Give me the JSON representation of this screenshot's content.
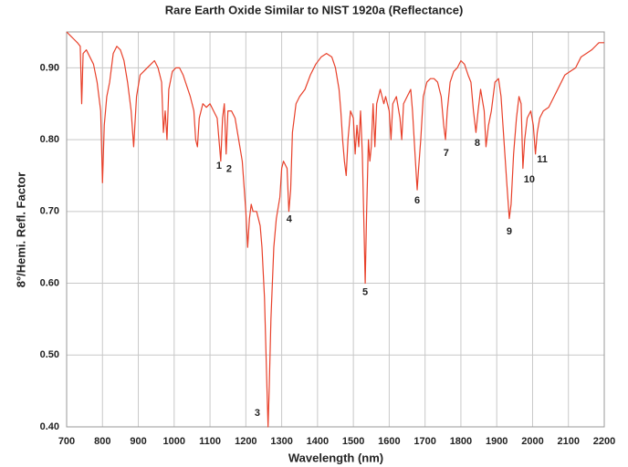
{
  "chart_data": {
    "type": "line",
    "title": "Rare Earth Oxide Similar to NIST 1920a (Reflectance)",
    "x_label": "Wavelength (nm)",
    "y_label": "8°/Hemi. Refl. Factor",
    "xlim": [
      700,
      2200
    ],
    "ylim": [
      0.4,
      0.95
    ],
    "xticks": [
      700,
      800,
      900,
      1000,
      1100,
      1200,
      1300,
      1400,
      1500,
      1600,
      1700,
      1800,
      1900,
      2000,
      2100,
      2200
    ],
    "yticks": [
      {
        "value": 0.4,
        "label": "0.40"
      },
      {
        "value": 0.5,
        "label": "0.50"
      },
      {
        "value": 0.6,
        "label": "0.60"
      },
      {
        "value": 0.7,
        "label": "0.70"
      },
      {
        "value": 0.8,
        "label": "0.80"
      },
      {
        "value": 0.9,
        "label": "0.90"
      }
    ],
    "grid": true,
    "x": [
      700,
      710,
      720,
      730,
      738,
      742,
      746,
      755,
      765,
      775,
      785,
      795,
      800,
      805,
      812,
      820,
      830,
      840,
      850,
      860,
      870,
      880,
      887,
      895,
      905,
      915,
      925,
      935,
      945,
      955,
      965,
      970,
      975,
      980,
      985,
      995,
      1005,
      1015,
      1025,
      1035,
      1045,
      1055,
      1060,
      1065,
      1070,
      1080,
      1090,
      1100,
      1110,
      1120,
      1130,
      1135,
      1140,
      1145,
      1150,
      1160,
      1170,
      1180,
      1190,
      1200,
      1205,
      1210,
      1215,
      1220,
      1230,
      1240,
      1245,
      1252,
      1258,
      1262,
      1265,
      1270,
      1278,
      1285,
      1295,
      1300,
      1305,
      1315,
      1320,
      1325,
      1330,
      1340,
      1350,
      1365,
      1380,
      1395,
      1410,
      1425,
      1440,
      1450,
      1460,
      1465,
      1470,
      1475,
      1480,
      1485,
      1492,
      1500,
      1505,
      1510,
      1515,
      1520,
      1525,
      1530,
      1533,
      1537,
      1542,
      1546,
      1550,
      1555,
      1560,
      1565,
      1575,
      1585,
      1590,
      1600,
      1605,
      1610,
      1620,
      1630,
      1635,
      1640,
      1650,
      1660,
      1665,
      1672,
      1678,
      1682,
      1688,
      1695,
      1705,
      1715,
      1725,
      1735,
      1745,
      1752,
      1757,
      1762,
      1770,
      1780,
      1790,
      1800,
      1810,
      1820,
      1828,
      1835,
      1842,
      1848,
      1855,
      1865,
      1870,
      1877,
      1885,
      1895,
      1905,
      1912,
      1920,
      1928,
      1935,
      1940,
      1947,
      1955,
      1962,
      1968,
      1973,
      1978,
      1985,
      1995,
      2002,
      2008,
      2013,
      2020,
      2030,
      2045,
      2060,
      2075,
      2090,
      2105,
      2120,
      2135,
      2150,
      2165,
      2175,
      2185,
      2200
    ],
    "series": [
      {
        "color": "#e8402a",
        "values": [
          0.95,
          0.945,
          0.94,
          0.935,
          0.93,
          0.85,
          0.92,
          0.925,
          0.915,
          0.905,
          0.88,
          0.84,
          0.74,
          0.82,
          0.86,
          0.88,
          0.92,
          0.93,
          0.925,
          0.91,
          0.88,
          0.84,
          0.79,
          0.86,
          0.89,
          0.895,
          0.9,
          0.905,
          0.91,
          0.9,
          0.88,
          0.81,
          0.84,
          0.8,
          0.87,
          0.895,
          0.9,
          0.9,
          0.89,
          0.875,
          0.86,
          0.84,
          0.8,
          0.79,
          0.83,
          0.85,
          0.845,
          0.85,
          0.84,
          0.83,
          0.77,
          0.83,
          0.85,
          0.78,
          0.84,
          0.84,
          0.83,
          0.8,
          0.77,
          0.7,
          0.65,
          0.69,
          0.71,
          0.7,
          0.7,
          0.68,
          0.65,
          0.58,
          0.47,
          0.4,
          0.45,
          0.55,
          0.65,
          0.69,
          0.72,
          0.76,
          0.77,
          0.76,
          0.7,
          0.73,
          0.81,
          0.85,
          0.86,
          0.87,
          0.89,
          0.905,
          0.915,
          0.92,
          0.915,
          0.9,
          0.87,
          0.84,
          0.8,
          0.77,
          0.75,
          0.8,
          0.84,
          0.83,
          0.78,
          0.82,
          0.79,
          0.84,
          0.78,
          0.67,
          0.6,
          0.7,
          0.8,
          0.77,
          0.79,
          0.85,
          0.79,
          0.85,
          0.87,
          0.85,
          0.86,
          0.84,
          0.8,
          0.85,
          0.86,
          0.83,
          0.8,
          0.85,
          0.86,
          0.87,
          0.84,
          0.78,
          0.73,
          0.76,
          0.8,
          0.86,
          0.88,
          0.885,
          0.885,
          0.88,
          0.86,
          0.82,
          0.8,
          0.84,
          0.88,
          0.895,
          0.9,
          0.91,
          0.905,
          0.89,
          0.88,
          0.84,
          0.81,
          0.84,
          0.87,
          0.84,
          0.79,
          0.82,
          0.84,
          0.88,
          0.885,
          0.86,
          0.8,
          0.74,
          0.69,
          0.71,
          0.78,
          0.83,
          0.86,
          0.85,
          0.76,
          0.8,
          0.83,
          0.84,
          0.82,
          0.78,
          0.81,
          0.83,
          0.84,
          0.845,
          0.86,
          0.875,
          0.89,
          0.895,
          0.9,
          0.915,
          0.92,
          0.925,
          0.93,
          0.935,
          0.935
        ]
      }
    ],
    "annotations": [
      {
        "text": "1",
        "x": 1125,
        "y": 0.763
      },
      {
        "text": "2",
        "x": 1153,
        "y": 0.759
      },
      {
        "text": "3",
        "x": 1232,
        "y": 0.419
      },
      {
        "text": "4",
        "x": 1321,
        "y": 0.689
      },
      {
        "text": "5",
        "x": 1533,
        "y": 0.587
      },
      {
        "text": "6",
        "x": 1678,
        "y": 0.715
      },
      {
        "text": "7",
        "x": 1759,
        "y": 0.781
      },
      {
        "text": "8",
        "x": 1846,
        "y": 0.795
      },
      {
        "text": "9",
        "x": 1935,
        "y": 0.672
      },
      {
        "text": "10",
        "x": 1991,
        "y": 0.744
      },
      {
        "text": "11",
        "x": 2027,
        "y": 0.772
      }
    ]
  }
}
